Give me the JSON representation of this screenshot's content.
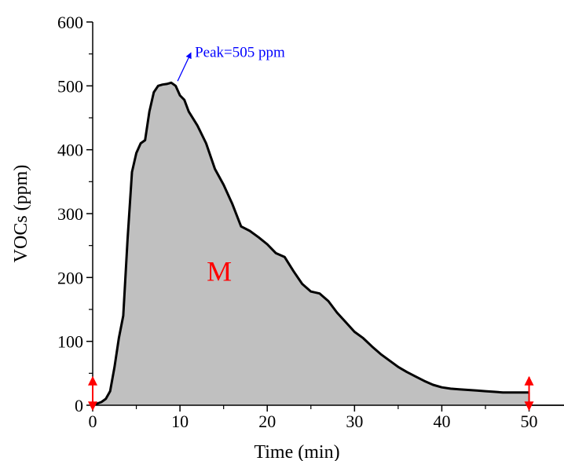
{
  "chart_data": {
    "type": "area",
    "xlabel": "Time (min)",
    "ylabel": "VOCs (ppm)",
    "xlim": [
      0,
      54
    ],
    "ylim": [
      0,
      600
    ],
    "xticks": [
      0,
      10,
      20,
      30,
      40,
      50
    ],
    "yticks": [
      0,
      100,
      200,
      300,
      400,
      500,
      600
    ],
    "grid": false,
    "series": [
      {
        "x": [
          0,
          1,
          1.5,
          2,
          2.5,
          3,
          3.5,
          4,
          4.5,
          5,
          5.5,
          6,
          6.5,
          7,
          7.5,
          8,
          8.5,
          9,
          9.5,
          10,
          10.5,
          11,
          12,
          13,
          14,
          15,
          16,
          17,
          18,
          19,
          20,
          21,
          22,
          23,
          24,
          25,
          26,
          27,
          28,
          29,
          30,
          31,
          32,
          33,
          34,
          35,
          36,
          37,
          38,
          39,
          40,
          41,
          42,
          43,
          44,
          45,
          46,
          47,
          48,
          49,
          50
        ],
        "y": [
          0,
          5,
          10,
          22,
          60,
          105,
          140,
          260,
          365,
          395,
          410,
          415,
          460,
          490,
          500,
          502,
          503,
          505,
          500,
          485,
          478,
          460,
          438,
          410,
          370,
          345,
          315,
          280,
          273,
          263,
          252,
          238,
          232,
          210,
          190,
          178,
          175,
          163,
          145,
          130,
          115,
          105,
          92,
          80,
          70,
          60,
          52,
          45,
          38,
          32,
          28,
          26,
          25,
          24,
          23,
          22,
          21,
          20,
          20,
          20,
          20
        ]
      }
    ],
    "fill_color": "#c0c0c0",
    "line_color": "#000000",
    "annotations": {
      "peak": {
        "text": "Peak=505 ppm",
        "x": 10,
        "y": 505,
        "color": "#0000ff"
      },
      "region": {
        "text": "M",
        "x": 14.5,
        "y": 195,
        "color": "#ff0000"
      },
      "bounds": {
        "start_x": 0,
        "end_x": 50,
        "color": "#ff0000"
      }
    }
  }
}
